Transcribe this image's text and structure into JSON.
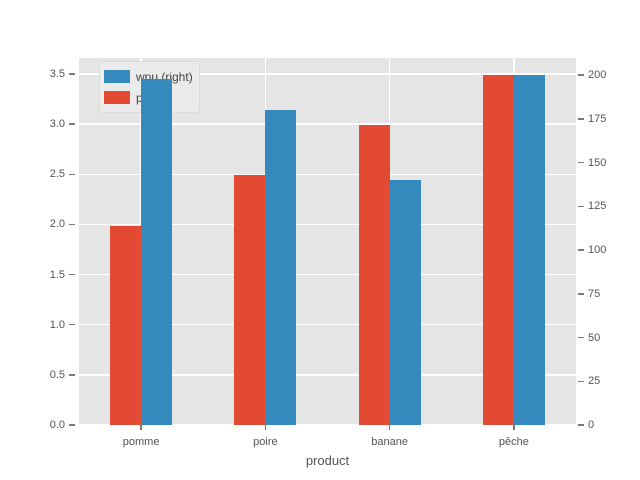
{
  "chart_data": {
    "type": "bar",
    "title": "",
    "categories": [
      "pomme",
      "poire",
      "banane",
      "pêche"
    ],
    "series": [
      {
        "name": "price",
        "axis": "left",
        "color": "#E24A33",
        "values": [
          1.98,
          2.49,
          2.99,
          3.49
        ]
      },
      {
        "name": "wpu",
        "axis": "right",
        "color": "#348ABD",
        "values": [
          198,
          180,
          140,
          200
        ]
      }
    ],
    "xlabel": "product",
    "ylabel": "",
    "left_axis": {
      "ticks": [
        0.0,
        0.5,
        1.0,
        1.5,
        2.0,
        2.5,
        3.0,
        3.5
      ],
      "lim": [
        0,
        3.6645
      ]
    },
    "right_axis": {
      "ticks": [
        0,
        25,
        50,
        75,
        100,
        125,
        150,
        175,
        200
      ],
      "lim": [
        0,
        210
      ]
    },
    "legend": {
      "position": "upper left",
      "entries": [
        {
          "label": "wpu (right)",
          "color": "#348ABD"
        },
        {
          "label": "price",
          "color": "#E24A33"
        }
      ]
    },
    "grid": true,
    "style": {
      "figure_bg": "#FFFFFF",
      "plot_bg": "#E5E5E5",
      "grid_color": "#FFFFFF",
      "text_color": "#555555"
    }
  }
}
